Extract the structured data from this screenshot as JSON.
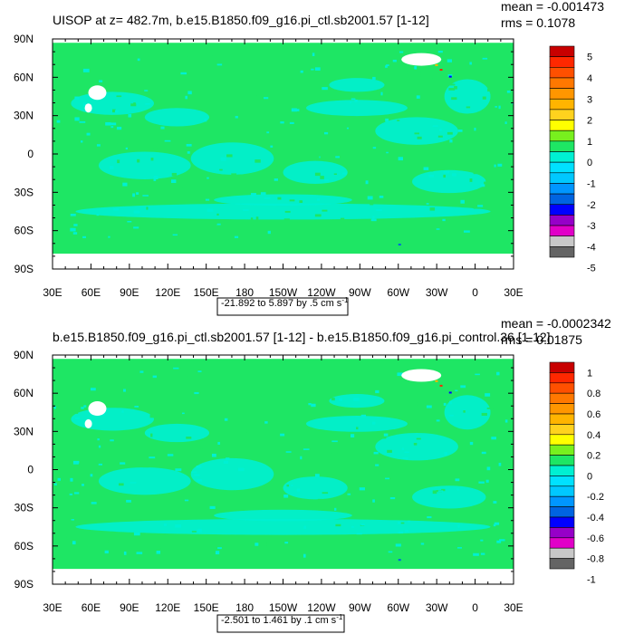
{
  "panels": [
    {
      "title": "UISOP at z= 482.7m, b.e15.B1850.f09_g16.pi_ctl.sb2001.57 [1-12]",
      "stats": {
        "mean": "mean = -0.001473",
        "rms": "rms = 0.1078"
      },
      "range_label": "-21.892 to 5.897 by .5 cm s",
      "range_sup": "-1",
      "colorbar_labels": [
        "5",
        "4",
        "3",
        "2",
        "1",
        "0",
        "-1",
        "-2",
        "-3",
        "-4",
        "-5"
      ]
    },
    {
      "title": "b.e15.B1850.f09_g16.pi_ctl.sb2001.57 [1-12] - b.e15.B1850.f09_g16.pi_control.36 [1-12]",
      "stats": {
        "mean": "mean = -0.0002342",
        "rms": "rms = 0.01875"
      },
      "range_label": "-2.501 to 1.461 by .1 cm s",
      "range_sup": "-1",
      "colorbar_labels": [
        "1",
        "0.8",
        "0.6",
        "0.4",
        "0.2",
        "0",
        "-0.2",
        "-0.4",
        "-0.6",
        "-0.8",
        "-1"
      ]
    }
  ],
  "chart_data": [
    {
      "type": "heatmap",
      "title": "UISOP at z= 482.7m, b.e15.B1850.f09_g16.pi_ctl.sb2001.57 [1-12]",
      "xlabel": "",
      "ylabel": "",
      "x_ticks": [
        "30E",
        "60E",
        "90E",
        "120E",
        "150E",
        "180",
        "150W",
        "120W",
        "90W",
        "60W",
        "30W",
        "0",
        "30E"
      ],
      "y_ticks": [
        "90N",
        "60N",
        "30N",
        "0",
        "30S",
        "60S",
        "90S"
      ],
      "xlim": [
        30,
        390
      ],
      "ylim": [
        -90,
        90
      ],
      "levels": [
        -5,
        -4,
        -3,
        -2,
        -1,
        0,
        1,
        2,
        3,
        4,
        5
      ],
      "data_min": -21.892,
      "data_max": 5.897,
      "interval": 0.5,
      "units": "cm s-1",
      "mean": -0.001473,
      "rms": 0.1078
    },
    {
      "type": "heatmap",
      "title": "b.e15.B1850.f09_g16.pi_ctl.sb2001.57 [1-12] - b.e15.B1850.f09_g16.pi_control.36 [1-12]",
      "xlabel": "",
      "ylabel": "",
      "x_ticks": [
        "30E",
        "60E",
        "90E",
        "120E",
        "150E",
        "180",
        "150W",
        "120W",
        "90W",
        "60W",
        "30W",
        "0",
        "30E"
      ],
      "y_ticks": [
        "90N",
        "60N",
        "30N",
        "0",
        "30S",
        "60S",
        "90S"
      ],
      "xlim": [
        30,
        390
      ],
      "ylim": [
        -90,
        90
      ],
      "levels": [
        -1,
        -0.8,
        -0.6,
        -0.4,
        -0.2,
        0,
        0.2,
        0.4,
        0.6,
        0.8,
        1
      ],
      "data_min": -2.501,
      "data_max": 1.461,
      "interval": 0.1,
      "units": "cm s-1",
      "mean": -0.0002342,
      "rms": 0.01875
    }
  ],
  "colors": {
    "bins": [
      "#646464",
      "#c8c8c8",
      "#e100c8",
      "#9600c8",
      "#0000ff",
      "#0064e1",
      "#0096ff",
      "#00c8ff",
      "#00e1ff",
      "#00f0d2",
      "#1ee664",
      "#78f01e",
      "#ffff00",
      "#ffd21e",
      "#ffb400",
      "#ff9600",
      "#ff7800",
      "#ff5000",
      "#ff2800",
      "#c80000"
    ],
    "ocean_main": "#1ee664",
    "ocean_alt": "#00f0d2",
    "land": "#ffffff"
  }
}
